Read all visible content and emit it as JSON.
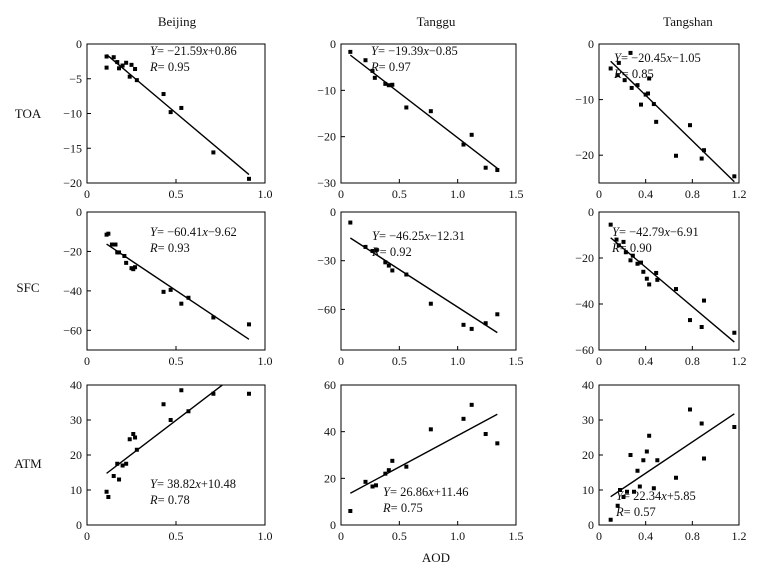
{
  "figure": {
    "columns": [
      "Beijing",
      "Tanggu",
      "Tangshan"
    ],
    "rows": [
      "TOA",
      "SFC",
      "ATM"
    ],
    "xlabel": "AOD"
  },
  "chart_data": [
    {
      "type": "scatter",
      "row": "TOA",
      "column": "Beijing",
      "title": "Beijing",
      "xlabel": "AOD",
      "ylabel": "TOA",
      "xlim": [
        0,
        1.0
      ],
      "xticks": [
        0,
        0.5,
        1.0
      ],
      "xtick_labels": [
        "0",
        "0.5",
        "1.0"
      ],
      "ylim": [
        -20,
        0
      ],
      "yticks": [
        0,
        -5,
        -10,
        -15,
        -20
      ],
      "ytick_labels": [
        "0",
        "-5",
        "-10",
        "-15",
        "-20"
      ],
      "points": [
        [
          0.11,
          -1.8
        ],
        [
          0.11,
          -3.4
        ],
        [
          0.15,
          -1.9
        ],
        [
          0.17,
          -2.6
        ],
        [
          0.18,
          -3.5
        ],
        [
          0.2,
          -3.1
        ],
        [
          0.22,
          -2.7
        ],
        [
          0.24,
          -4.7
        ],
        [
          0.25,
          -3.0
        ],
        [
          0.27,
          -3.6
        ],
        [
          0.28,
          -5.2
        ],
        [
          0.43,
          -7.2
        ],
        [
          0.47,
          -9.8
        ],
        [
          0.53,
          -9.2
        ],
        [
          0.71,
          -15.6
        ],
        [
          0.91,
          -19.4
        ]
      ],
      "fit": {
        "slope": -21.59,
        "intercept": 0.86,
        "x_range": [
          0.11,
          0.91
        ]
      },
      "equation": {
        "y": "Y",
        "eq": "= −21.59",
        "x": "x",
        "tail": "+0.86"
      },
      "r": {
        "label": "R",
        "value": "= 0.95"
      }
    },
    {
      "type": "scatter",
      "row": "TOA",
      "column": "Tanggu",
      "title": "Tanggu",
      "xlabel": "AOD",
      "ylabel": "",
      "xlim": [
        0,
        1.5
      ],
      "xticks": [
        0,
        0.5,
        1.0,
        1.5
      ],
      "xtick_labels": [
        "0",
        "0.5",
        "1.0",
        "1.5"
      ],
      "ylim": [
        -30,
        0
      ],
      "yticks": [
        0,
        -10,
        -20,
        -30
      ],
      "ytick_labels": [
        "0",
        "-10",
        "-20",
        "-30"
      ],
      "points": [
        [
          0.08,
          -1.7
        ],
        [
          0.21,
          -3.5
        ],
        [
          0.27,
          -5.8
        ],
        [
          0.29,
          -7.3
        ],
        [
          0.38,
          -8.6
        ],
        [
          0.41,
          -8.9
        ],
        [
          0.44,
          -8.8
        ],
        [
          0.56,
          -13.7
        ],
        [
          0.77,
          -14.5
        ],
        [
          1.05,
          -21.7
        ],
        [
          1.12,
          -19.6
        ],
        [
          1.24,
          -26.7
        ],
        [
          1.34,
          -27.2
        ]
      ],
      "fit": {
        "slope": -19.39,
        "intercept": -0.85,
        "x_range": [
          0.08,
          1.34
        ]
      },
      "equation": {
        "y": "Y",
        "eq": "= −19.39",
        "x": "x",
        "tail": "−0.85"
      },
      "r": {
        "label": "R",
        "value": "= 0.97"
      }
    },
    {
      "type": "scatter",
      "row": "TOA",
      "column": "Tangshan",
      "title": "Tangshan",
      "xlabel": "AOD",
      "ylabel": "",
      "xlim": [
        0,
        1.2
      ],
      "xticks": [
        0,
        0.4,
        0.8,
        1.2
      ],
      "xtick_labels": [
        "0",
        "0.4",
        "0.8",
        "1.2"
      ],
      "ylim": [
        -25,
        0
      ],
      "yticks": [
        0,
        -10,
        -20
      ],
      "ytick_labels": [
        "0",
        "-10",
        "-20"
      ],
      "points": [
        [
          0.1,
          -4.4
        ],
        [
          0.16,
          -5.6
        ],
        [
          0.17,
          -3.4
        ],
        [
          0.22,
          -6.5
        ],
        [
          0.27,
          -1.6
        ],
        [
          0.28,
          -7.9
        ],
        [
          0.33,
          -7.4
        ],
        [
          0.36,
          -10.9
        ],
        [
          0.4,
          -9.1
        ],
        [
          0.42,
          -8.9
        ],
        [
          0.43,
          -6.2
        ],
        [
          0.47,
          -10.8
        ],
        [
          0.49,
          -14.0
        ],
        [
          0.66,
          -20.1
        ],
        [
          0.78,
          -14.6
        ],
        [
          0.88,
          -20.6
        ],
        [
          0.9,
          -19.1
        ],
        [
          1.16,
          -23.8
        ]
      ],
      "fit": {
        "slope": -20.45,
        "intercept": -1.05,
        "x_range": [
          0.1,
          1.16
        ]
      },
      "equation": {
        "y": "Y",
        "eq": "= −20.45",
        "x": "x",
        "tail": "−1.05"
      },
      "r": {
        "label": "R",
        "value": "= 0.85"
      }
    },
    {
      "type": "scatter",
      "row": "SFC",
      "column": "Beijing",
      "title": "",
      "xlabel": "AOD",
      "ylabel": "SFC",
      "xlim": [
        0,
        1.0
      ],
      "xticks": [
        0,
        0.5,
        1.0
      ],
      "xtick_labels": [
        "0",
        "0.5",
        "1.0"
      ],
      "ylim": [
        -70,
        0
      ],
      "yticks": [
        0,
        -20,
        -40,
        -60
      ],
      "ytick_labels": [
        "0",
        "-20",
        "-40",
        "-60"
      ],
      "points": [
        [
          0.11,
          -11.5
        ],
        [
          0.12,
          -11.0
        ],
        [
          0.14,
          -16.5
        ],
        [
          0.16,
          -16.5
        ],
        [
          0.17,
          -20.5
        ],
        [
          0.18,
          -20.5
        ],
        [
          0.21,
          -22.3
        ],
        [
          0.22,
          -25.8
        ],
        [
          0.25,
          -28.5
        ],
        [
          0.26,
          -29.0
        ],
        [
          0.27,
          -28.0
        ],
        [
          0.43,
          -40.5
        ],
        [
          0.47,
          -39.5
        ],
        [
          0.53,
          -46.5
        ],
        [
          0.57,
          -43.5
        ],
        [
          0.71,
          -53.5
        ],
        [
          0.91,
          -57.0
        ]
      ],
      "fit": {
        "slope": -60.41,
        "intercept": -9.62,
        "x_range": [
          0.11,
          0.91
        ]
      },
      "equation": {
        "y": "Y",
        "eq": "= −60.41",
        "x": "x",
        "tail": "−9.62"
      },
      "r": {
        "label": "R",
        "value": "= 0.93"
      }
    },
    {
      "type": "scatter",
      "row": "SFC",
      "column": "Tanggu",
      "title": "",
      "xlabel": "AOD",
      "ylabel": "",
      "xlim": [
        0,
        1.5
      ],
      "xticks": [
        0,
        0.5,
        1.0,
        1.5
      ],
      "xtick_labels": [
        "0",
        "0.5",
        "1.0",
        "1.5"
      ],
      "ylim": [
        -85,
        0
      ],
      "yticks": [
        0,
        -30,
        -60
      ],
      "ytick_labels": [
        "0",
        "-30",
        "-60"
      ],
      "points": [
        [
          0.08,
          -6.5
        ],
        [
          0.21,
          -21.5
        ],
        [
          0.27,
          -24.0
        ],
        [
          0.3,
          -23.5
        ],
        [
          0.38,
          -31.0
        ],
        [
          0.41,
          -33.0
        ],
        [
          0.44,
          -36.0
        ],
        [
          0.56,
          -38.5
        ],
        [
          0.77,
          -56.5
        ],
        [
          1.05,
          -69.5
        ],
        [
          1.12,
          -72.0
        ],
        [
          1.24,
          -68.5
        ],
        [
          1.34,
          -63.0
        ]
      ],
      "fit": {
        "slope": -46.25,
        "intercept": -12.31,
        "x_range": [
          0.08,
          1.34
        ]
      },
      "equation": {
        "y": "Y",
        "eq": "= −46.25",
        "x": "x",
        "tail": "−12.31"
      },
      "r": {
        "label": "R",
        "value": "= 0.92"
      }
    },
    {
      "type": "scatter",
      "row": "SFC",
      "column": "Tangshan",
      "title": "",
      "xlabel": "AOD",
      "ylabel": "",
      "xlim": [
        0,
        1.2
      ],
      "xticks": [
        0,
        0.4,
        0.8,
        1.2
      ],
      "xtick_labels": [
        "0",
        "0.4",
        "0.8",
        "1.2"
      ],
      "ylim": [
        -60,
        0
      ],
      "yticks": [
        0,
        -20,
        -40,
        -60
      ],
      "ytick_labels": [
        "0",
        "-20",
        "-40",
        "-60"
      ],
      "points": [
        [
          0.1,
          -5.5
        ],
        [
          0.15,
          -12.0
        ],
        [
          0.17,
          -14.5
        ],
        [
          0.21,
          -13.0
        ],
        [
          0.23,
          -17.5
        ],
        [
          0.27,
          -21.0
        ],
        [
          0.29,
          -19.0
        ],
        [
          0.33,
          -22.5
        ],
        [
          0.36,
          -22.0
        ],
        [
          0.38,
          -26.0
        ],
        [
          0.41,
          -29.0
        ],
        [
          0.43,
          -31.5
        ],
        [
          0.49,
          -26.5
        ],
        [
          0.5,
          -29.5
        ],
        [
          0.66,
          -33.5
        ],
        [
          0.78,
          -47.0
        ],
        [
          0.88,
          -50.0
        ],
        [
          0.9,
          -38.5
        ],
        [
          1.16,
          -52.5
        ]
      ],
      "fit": {
        "slope": -42.79,
        "intercept": -6.91,
        "x_range": [
          0.1,
          1.16
        ]
      },
      "equation": {
        "y": "Y",
        "eq": "= −42.79",
        "x": "x",
        "tail": "−6.91"
      },
      "r": {
        "label": "R",
        "value": "= 0.90"
      }
    },
    {
      "type": "scatter",
      "row": "ATM",
      "column": "Beijing",
      "title": "",
      "xlabel": "AOD",
      "ylabel": "ATM",
      "xlim": [
        0,
        1.0
      ],
      "xticks": [
        0,
        0.5,
        1.0
      ],
      "xtick_labels": [
        "0",
        "0.5",
        "1.0"
      ],
      "ylim": [
        0,
        40
      ],
      "yticks": [
        0,
        10,
        20,
        30,
        40
      ],
      "ytick_labels": [
        "0",
        "10",
        "20",
        "30",
        "40"
      ],
      "points": [
        [
          0.11,
          9.5
        ],
        [
          0.12,
          8.0
        ],
        [
          0.15,
          14.0
        ],
        [
          0.17,
          17.5
        ],
        [
          0.18,
          13.0
        ],
        [
          0.2,
          17.0
        ],
        [
          0.22,
          17.5
        ],
        [
          0.24,
          24.5
        ],
        [
          0.26,
          26.0
        ],
        [
          0.27,
          25.0
        ],
        [
          0.28,
          21.5
        ],
        [
          0.43,
          34.5
        ],
        [
          0.47,
          30.0
        ],
        [
          0.53,
          38.5
        ],
        [
          0.57,
          32.5
        ],
        [
          0.71,
          37.5
        ],
        [
          0.91,
          37.5
        ]
      ],
      "fit": {
        "slope": 38.82,
        "intercept": 10.48,
        "x_range": [
          0.11,
          0.76
        ]
      },
      "equation": {
        "y": "Y",
        "eq": "= 38.82",
        "x": "x",
        "tail": "+10.48"
      },
      "r": {
        "label": "R",
        "value": "= 0.78"
      }
    },
    {
      "type": "scatter",
      "row": "ATM",
      "column": "Tanggu",
      "title": "",
      "xlabel": "AOD",
      "ylabel": "",
      "xlim": [
        0,
        1.5
      ],
      "xticks": [
        0,
        0.5,
        1.0,
        1.5
      ],
      "xtick_labels": [
        "0",
        "0.5",
        "1.0",
        "1.5"
      ],
      "ylim": [
        0,
        60
      ],
      "yticks": [
        0,
        20,
        40,
        60
      ],
      "ytick_labels": [
        "0",
        "20",
        "40",
        "60"
      ],
      "points": [
        [
          0.08,
          6.0
        ],
        [
          0.21,
          18.5
        ],
        [
          0.27,
          16.5
        ],
        [
          0.3,
          17.0
        ],
        [
          0.38,
          22.0
        ],
        [
          0.41,
          23.5
        ],
        [
          0.44,
          27.5
        ],
        [
          0.56,
          25.0
        ],
        [
          0.77,
          41.0
        ],
        [
          1.05,
          45.5
        ],
        [
          1.12,
          51.5
        ],
        [
          1.24,
          39.0
        ],
        [
          1.34,
          35.0
        ]
      ],
      "fit": {
        "slope": 26.86,
        "intercept": 11.46,
        "x_range": [
          0.08,
          1.34
        ]
      },
      "equation": {
        "y": "Y",
        "eq": "= 26.86",
        "x": "x",
        "tail": "+11.46"
      },
      "r": {
        "label": "R",
        "value": "= 0.75"
      }
    },
    {
      "type": "scatter",
      "row": "ATM",
      "column": "Tangshan",
      "title": "",
      "xlabel": "AOD",
      "ylabel": "",
      "xlim": [
        0,
        1.2
      ],
      "xticks": [
        0,
        0.4,
        0.8,
        1.2
      ],
      "xtick_labels": [
        "0",
        "0.4",
        "0.8",
        "1.2"
      ],
      "ylim": [
        0,
        40
      ],
      "yticks": [
        0,
        10,
        20,
        30,
        40
      ],
      "ytick_labels": [
        "0",
        "10",
        "20",
        "30",
        "40"
      ],
      "points": [
        [
          0.1,
          1.5
        ],
        [
          0.16,
          5.5
        ],
        [
          0.18,
          10.0
        ],
        [
          0.21,
          8.0
        ],
        [
          0.24,
          9.5
        ],
        [
          0.27,
          20.0
        ],
        [
          0.3,
          9.5
        ],
        [
          0.33,
          15.5
        ],
        [
          0.35,
          11.0
        ],
        [
          0.38,
          18.5
        ],
        [
          0.41,
          21.0
        ],
        [
          0.43,
          25.5
        ],
        [
          0.47,
          10.5
        ],
        [
          0.5,
          18.5
        ],
        [
          0.66,
          13.5
        ],
        [
          0.78,
          33.0
        ],
        [
          0.88,
          29.0
        ],
        [
          0.9,
          19.0
        ],
        [
          1.16,
          28.0
        ]
      ],
      "fit": {
        "slope": 22.34,
        "intercept": 5.85,
        "x_range": [
          0.1,
          1.16
        ]
      },
      "equation": {
        "y": "Y",
        "eq": "= 22.34",
        "x": "x",
        "tail": "+5.85"
      },
      "r": {
        "label": "R",
        "value": "= 0.57"
      }
    }
  ]
}
